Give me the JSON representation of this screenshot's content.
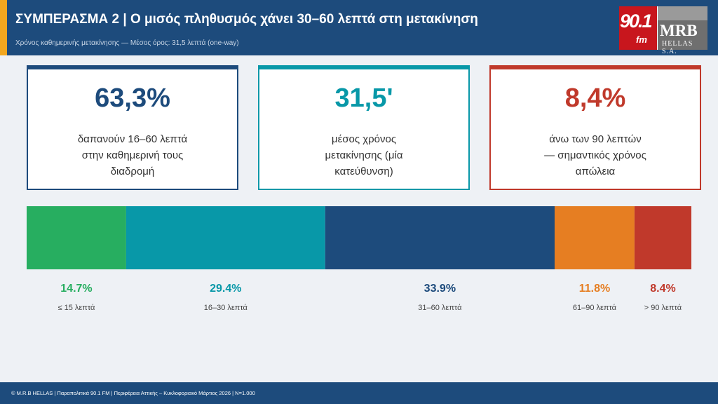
{
  "header": {
    "title": "ΣΥΜΠΕΡΑΣΜΑ 2  |  Ο μισός πληθυσμός χάνει 30–60 λεπτά στη μετακίνηση",
    "subtitle": "Χρόνος καθημερινής μετακίνησης — Μέσος όρος: 31,5 λεπτά (one-way)"
  },
  "logo": {
    "fm_number": "90.1",
    "fm_suffix": "fm",
    "brand": "MRB",
    "brand_sub": "HELLAS S.A."
  },
  "cards": [
    {
      "value": "63,3%",
      "lines": [
        "δαπανούν 16–60 λεπτά",
        "στην καθημερινή τους",
        "διαδρομή"
      ],
      "color": "#1d4b7c"
    },
    {
      "value": "31,5'",
      "lines": [
        "μέσος χρόνος",
        "μετακίνησης (μία",
        "κατεύθυνση)"
      ],
      "color": "#0898a8"
    },
    {
      "value": "8,4%",
      "lines": [
        "άνω των 90 λεπτών",
        "— σημαντικός χρόνος",
        "απώλεια"
      ],
      "color": "#c0392b"
    }
  ],
  "chart_data": {
    "type": "bar",
    "orientation": "horizontal-stacked-100",
    "categories": [
      "≤ 15 λεπτά",
      "16–30 λεπτά",
      "31–60 λεπτά",
      "61–90 λεπτά",
      "> 90 λεπτά"
    ],
    "values": [
      14.7,
      29.4,
      33.9,
      11.8,
      8.4
    ],
    "value_labels": [
      "14.7%",
      "29.4%",
      "33.9%",
      "11.8%",
      "8.4%"
    ],
    "colors": [
      "#27ae60",
      "#0898a8",
      "#1d4b7c",
      "#e67e22",
      "#c0392b"
    ]
  },
  "footer": {
    "text": "© M.R.B HELLAS  |  Παραπολιτικά 90.1 FM  |  Περιφέρεια Αττικής – Κυκλοφοριακό Μάρτιος 2026  |  N=1.000"
  }
}
